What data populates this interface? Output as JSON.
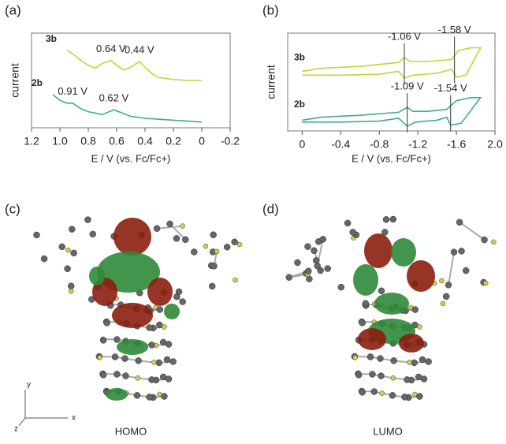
{
  "chart_data": [
    {
      "type": "line",
      "panel": "(a)",
      "ylabel": "current",
      "xlabel": "E / V (vs. Fc/Fc+)",
      "xlim": [
        1.2,
        -0.2
      ],
      "xticks": [
        1.2,
        {
          "value": 1,
          "label": "1.0"
        },
        0.8,
        0.6,
        0.4,
        0.2,
        0,
        -0.2
      ],
      "ylim": [
        0,
        10
      ],
      "peak_lines": false,
      "series": [
        {
          "name": "3b",
          "color": "#c5d33a",
          "x": [
            0.95,
            0.9,
            0.85,
            0.8,
            0.75,
            0.7,
            0.64,
            0.6,
            0.55,
            0.5,
            0.44,
            0.4,
            0.35,
            0.3,
            0.2,
            0.1,
            0
          ],
          "values": [
            8.2,
            7.7,
            7.1,
            6.6,
            6.3,
            6.8,
            7.1,
            6.6,
            6.1,
            6.4,
            7.0,
            6.4,
            5.7,
            5.3,
            5.1,
            5.0,
            5.0
          ],
          "peaks": [
            {
              "x": 0.64,
              "label": "0.64 V"
            },
            {
              "x": 0.44,
              "label": "0.44 V"
            }
          ]
        },
        {
          "name": "2b",
          "color": "#3fae86",
          "x": [
            1.05,
            1,
            0.95,
            0.91,
            0.85,
            0.8,
            0.7,
            0.62,
            0.55,
            0.5,
            0.4,
            0.3,
            0.2,
            0.1,
            0
          ],
          "values": [
            3.5,
            2.9,
            2.6,
            2.6,
            2.0,
            1.7,
            1.4,
            1.9,
            1.5,
            1.2,
            1.0,
            0.9,
            0.8,
            0.7,
            0.6
          ],
          "peaks": [
            {
              "x": 0.91,
              "label": "0.91 V"
            },
            {
              "x": 0.62,
              "label": "0.62 V"
            }
          ]
        }
      ]
    },
    {
      "type": "line",
      "panel": "(b)",
      "ylabel": "current",
      "xlabel": "E / V (vs. Fc/Fc+)",
      "xlim": [
        0.15,
        -2
      ],
      "xticks": [
        0,
        -0.4,
        -0.8,
        -1.2,
        -1.6,
        {
          "value": -2,
          "label": "2.0"
        }
      ],
      "ylim": [
        0,
        10
      ],
      "peak_lines": true,
      "series": [
        {
          "name": "3b",
          "color": "#c5d33a",
          "x": [
            0,
            -0.4,
            -0.8,
            -1,
            -1.06,
            -1.15,
            -1.4,
            -1.55,
            -1.6,
            -1.7,
            -1.85,
            -1.75,
            -1.62,
            -1.55,
            -1.3,
            -1.12,
            -1.06,
            -1,
            -0.6,
            -0.2,
            0
          ],
          "values": [
            5.7,
            5.7,
            5.8,
            6.1,
            5.4,
            5.7,
            5.9,
            6.3,
            5.5,
            5.7,
            8.5,
            8.5,
            8.2,
            7.3,
            7.1,
            7.1,
            7.5,
            7.0,
            6.6,
            6.4,
            6.1
          ],
          "peaks": [
            {
              "x": -1.06,
              "label": "-1.06 V"
            },
            {
              "x": -1.58,
              "label": "-1.58 V"
            }
          ]
        },
        {
          "name": "2b",
          "color": "#3fae86",
          "x": [
            0,
            -0.4,
            -0.8,
            -1,
            -1.09,
            -1.18,
            -1.4,
            -1.5,
            -1.54,
            -1.65,
            -1.85,
            -1.75,
            -1.6,
            -1.5,
            -1.3,
            -1.15,
            -1.09,
            -1,
            -0.6,
            -0.2,
            0
          ],
          "values": [
            0.9,
            0.9,
            1.0,
            1.3,
            0.5,
            0.9,
            1.1,
            1.4,
            0.6,
            0.8,
            3.4,
            3.4,
            3.1,
            2.2,
            2.0,
            2.0,
            2.4,
            1.9,
            1.6,
            1.4,
            1.1
          ],
          "peaks": [
            {
              "x": -1.09,
              "label": "-1.09 V"
            },
            {
              "x": -1.54,
              "label": "-1.54 V"
            }
          ]
        }
      ]
    }
  ],
  "figure": {
    "panels": [
      "(c)",
      "(d)"
    ],
    "orbitals": [
      "HOMO",
      "LUMO"
    ],
    "axes": [
      "y",
      "x",
      "z"
    ]
  }
}
